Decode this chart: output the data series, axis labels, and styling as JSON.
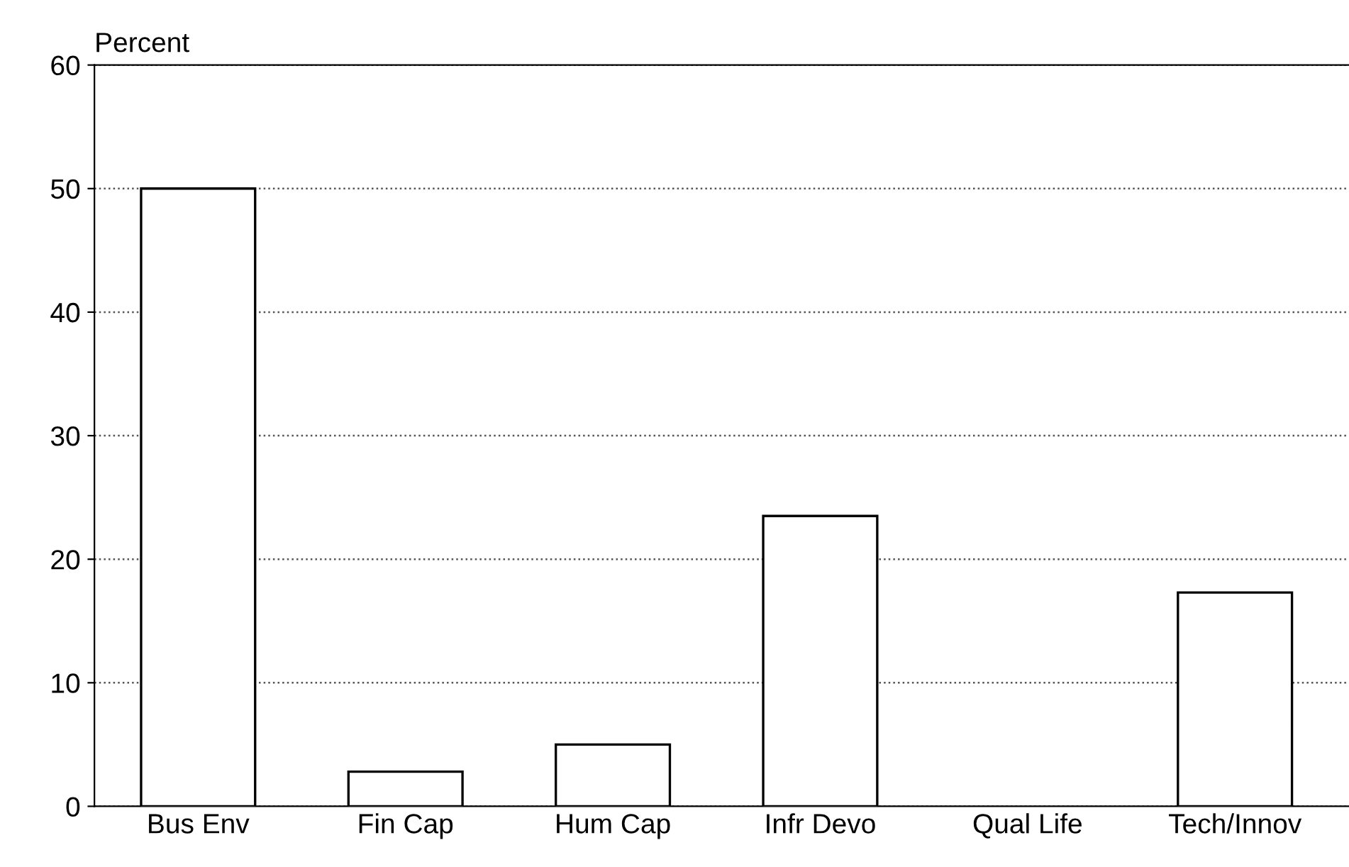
{
  "chart_data": {
    "type": "bar",
    "ylabel": "Percent",
    "categories": [
      "Bus Env",
      "Fin Cap",
      "Hum Cap",
      "Infr Devo",
      "Qual Life",
      "Tech/Innov"
    ],
    "values": [
      50,
      2.8,
      5,
      23.5,
      null,
      17.3
    ],
    "color": "#ffffff",
    "ylim": [
      0,
      60
    ],
    "yticks": [
      0,
      10,
      20,
      30,
      40,
      50,
      60
    ],
    "grid": "y",
    "line_style": "dotted"
  }
}
